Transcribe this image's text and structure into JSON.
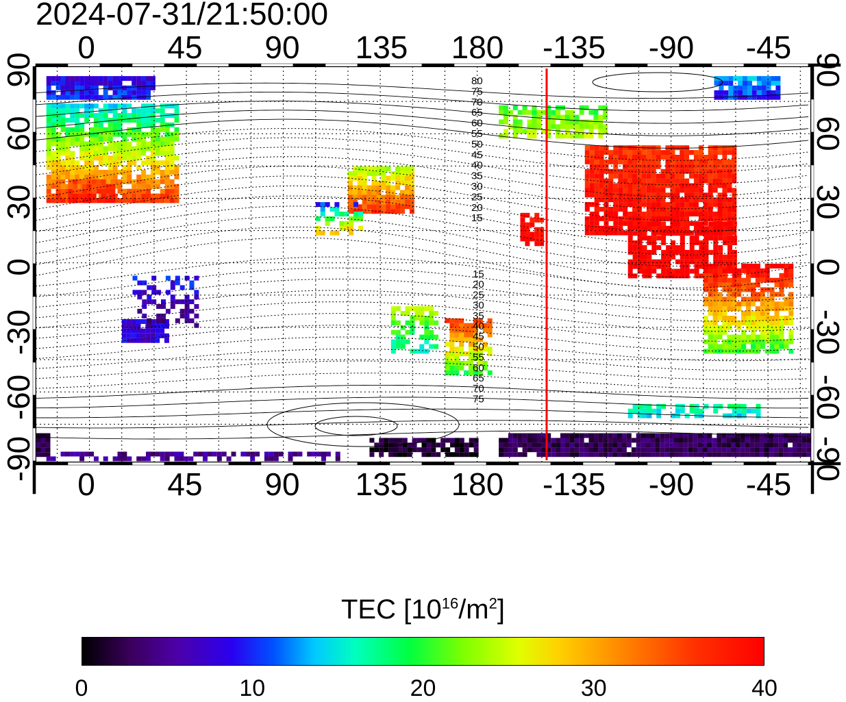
{
  "timestamp": "2024-07-31/21:50:00",
  "map": {
    "top_ticks": [
      "0",
      "45",
      "90",
      "135",
      "180",
      "-135",
      "-90",
      "-45"
    ],
    "bottom_ticks": [
      "0",
      "45",
      "90",
      "135",
      "180",
      "-135",
      "-90",
      "-45"
    ],
    "left_ticks": [
      "90",
      "60",
      "30",
      "0",
      "-30",
      "-60",
      "-90"
    ],
    "right_ticks": [
      "90",
      "60",
      "30",
      "0",
      "-30",
      "-60",
      "-90"
    ],
    "contour_labels_north": [
      "80",
      "75",
      "70",
      "65",
      "60",
      "55",
      "50",
      "45",
      "40",
      "35",
      "30",
      "25",
      "20",
      "15"
    ],
    "contour_labels_south": [
      "15",
      "20",
      "25",
      "30",
      "35",
      "40",
      "45",
      "50",
      "55",
      "60",
      "65",
      "70",
      "75"
    ],
    "terminator_color": "#ff0000"
  },
  "colorbar": {
    "title_prefix": "TEC  [10",
    "title_exp": "16",
    "title_mid": "/m",
    "title_exp2": "2",
    "title_suffix": "]",
    "labels": [
      "0",
      "10",
      "20",
      "30",
      "40"
    ],
    "min": 0,
    "max": 40
  }
}
